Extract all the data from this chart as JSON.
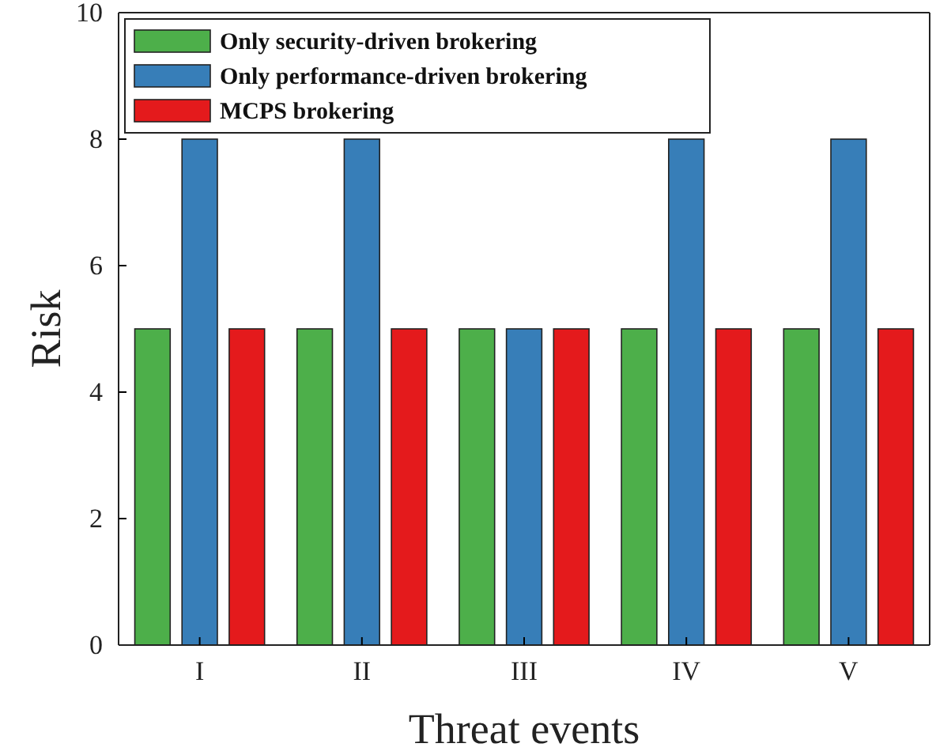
{
  "chart_data": {
    "type": "bar",
    "xlabel": "Threat events",
    "ylabel": "Risk",
    "categories": [
      "I",
      "II",
      "III",
      "IV",
      "V"
    ],
    "series": [
      {
        "name": "Only security-driven brokering",
        "color": "#4daf4a",
        "values": [
          5,
          5,
          5,
          5,
          5
        ]
      },
      {
        "name": "Only performance-driven brokering",
        "color": "#377eb8",
        "values": [
          8,
          8,
          5,
          8,
          8
        ]
      },
      {
        "name": "MCPS brokering",
        "color": "#e41a1c",
        "values": [
          5,
          5,
          5,
          5,
          5
        ]
      }
    ],
    "ylim": [
      0,
      10
    ],
    "yticks": [
      0,
      2,
      4,
      6,
      8,
      10
    ],
    "legend": "top left",
    "grid": false
  }
}
